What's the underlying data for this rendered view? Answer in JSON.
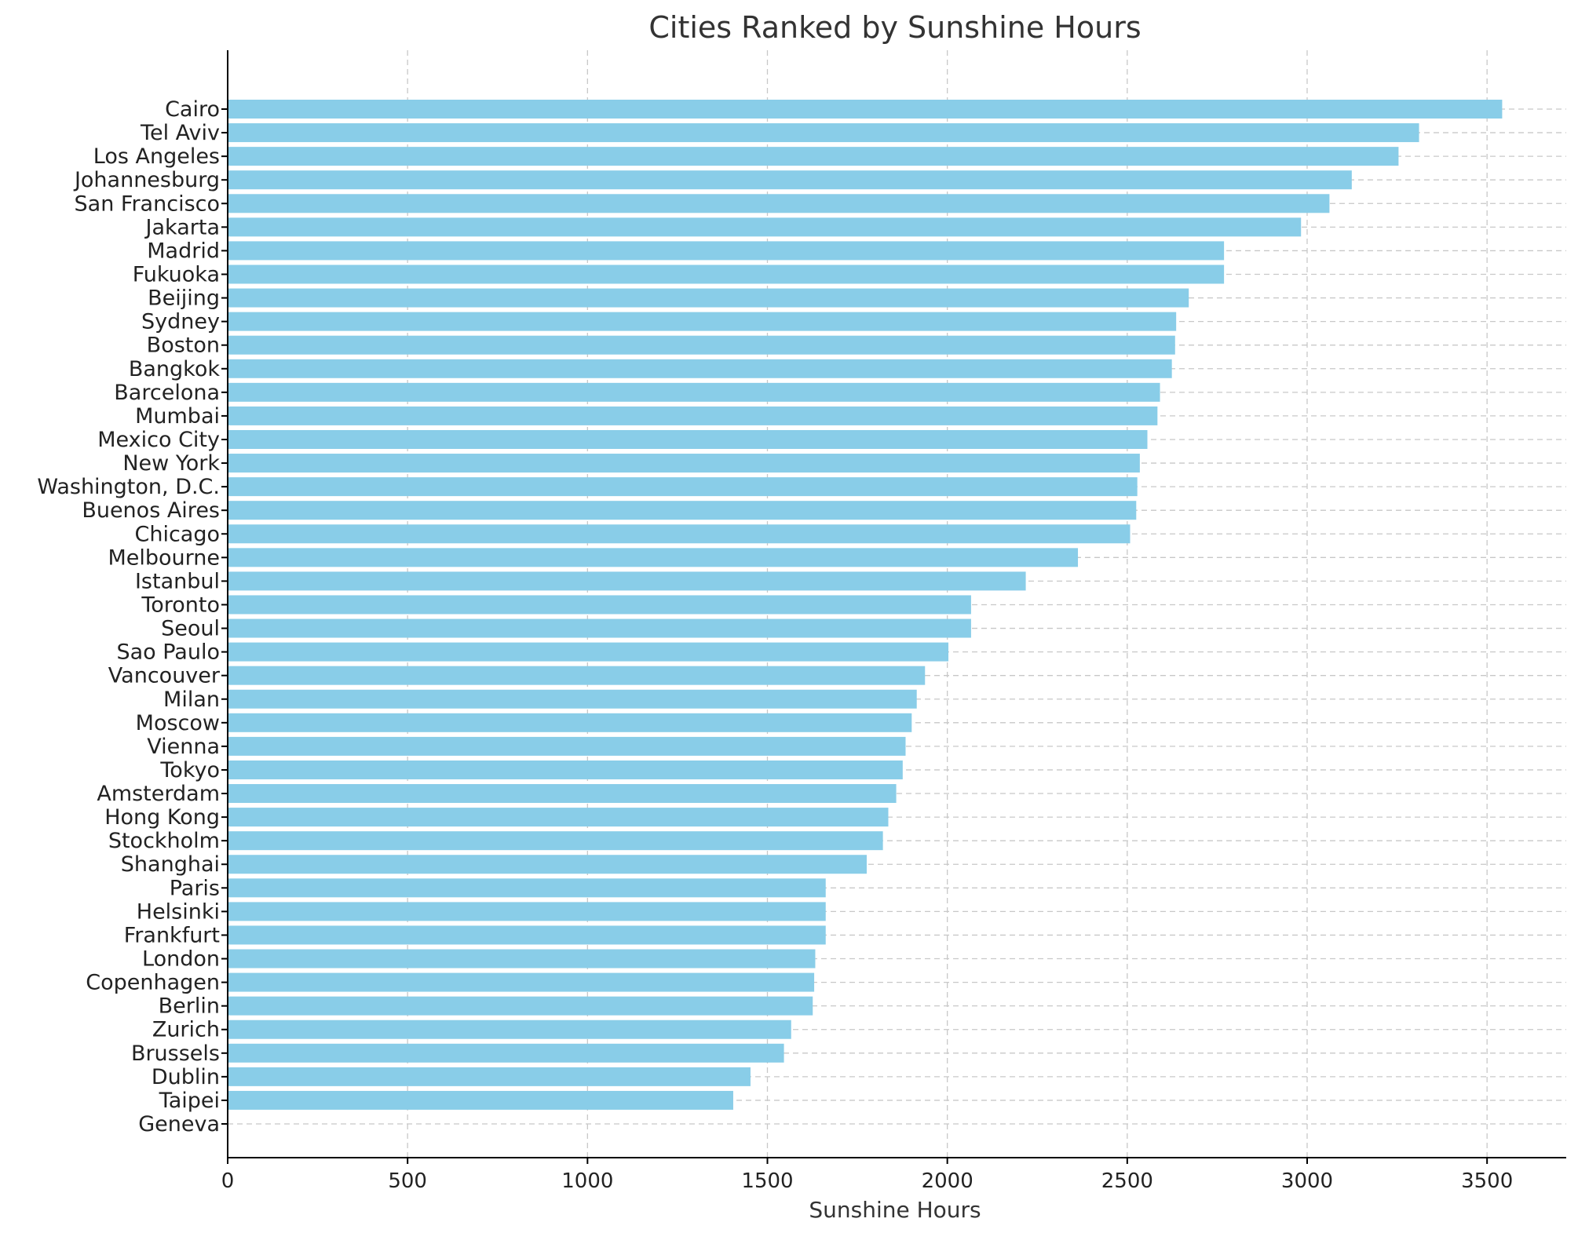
{
  "chart_data": {
    "type": "bar",
    "orientation": "horizontal",
    "title": "Cities Ranked by Sunshine Hours",
    "xlabel": "Sunshine Hours",
    "ylabel": "",
    "xlim": [
      0,
      3720
    ],
    "xticks": [
      0,
      500,
      1000,
      1500,
      2000,
      2500,
      3000,
      3500
    ],
    "grid": true,
    "bar_color": "#89cde8",
    "categories": [
      "Cairo",
      "Tel Aviv",
      "Los Angeles",
      "Johannesburg",
      "San Francisco",
      "Jakarta",
      "Madrid",
      "Fukuoka",
      "Beijing",
      "Sydney",
      "Boston",
      "Bangkok",
      "Barcelona",
      "Mumbai",
      "Mexico City",
      "New York",
      "Washington, D.C.",
      "Buenos Aires",
      "Chicago",
      "Melbourne",
      "Istanbul",
      "Toronto",
      "Seoul",
      "Sao Paulo",
      "Vancouver",
      "Milan",
      "Moscow",
      "Vienna",
      "Tokyo",
      "Amsterdam",
      "Hong Kong",
      "Stockholm",
      "Shanghai",
      "Paris",
      "Helsinki",
      "Frankfurt",
      "London",
      "Copenhagen",
      "Berlin",
      "Zurich",
      "Brussels",
      "Dublin",
      "Taipei",
      "Geneva"
    ],
    "values": [
      3542,
      3311,
      3254,
      3124,
      3062,
      2983,
      2769,
      2769,
      2671,
      2636,
      2633,
      2624,
      2591,
      2584,
      2556,
      2535,
      2528,
      2525,
      2508,
      2363,
      2218,
      2066,
      2066,
      2003,
      1938,
      1915,
      1901,
      1884,
      1876,
      1858,
      1836,
      1821,
      1776,
      1662,
      1662,
      1662,
      1633,
      1630,
      1626,
      1566,
      1546,
      1453,
      1405,
      0
    ]
  }
}
